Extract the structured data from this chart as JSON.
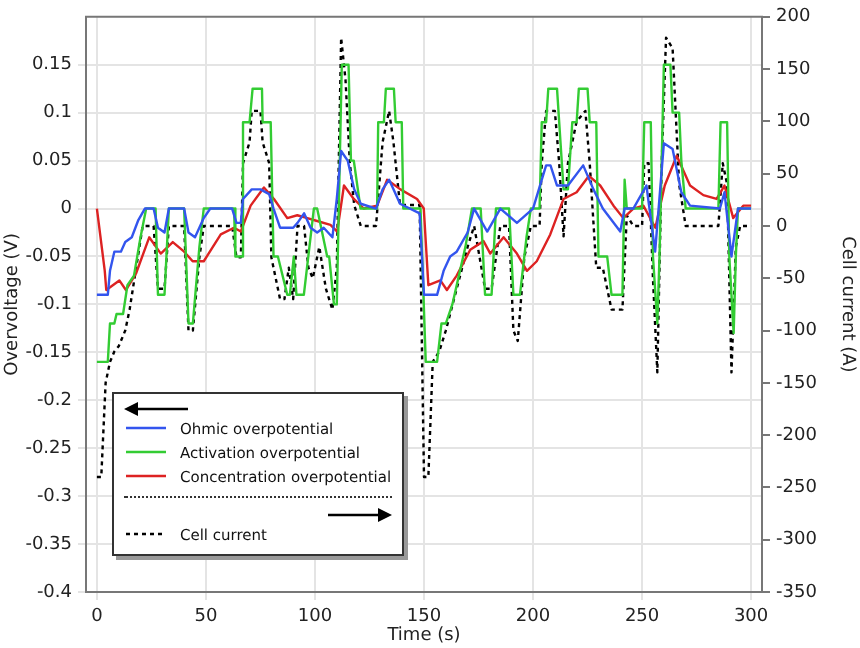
{
  "chart_data": {
    "type": "line",
    "xlabel": "Time (s)",
    "ylabel": "Overvoltage (V)",
    "y2label": "Cell current (A)",
    "xlim": [
      -5,
      305
    ],
    "xticks": [
      0,
      50,
      100,
      150,
      200,
      250,
      300
    ],
    "ylim": [
      -0.4,
      0.2
    ],
    "yticks": [
      -0.4,
      -0.35,
      -0.3,
      -0.25,
      -0.2,
      -0.15,
      -0.1,
      -0.05,
      0,
      0.05,
      0.1,
      0.15
    ],
    "y2lim": [
      -350,
      200
    ],
    "y2ticks": [
      -350,
      -300,
      -250,
      -200,
      -150,
      -100,
      -50,
      0,
      50,
      100,
      150,
      200
    ],
    "grid": true,
    "legend": "bottom left",
    "series": [
      {
        "name": "Ohmic overpotential",
        "color": "#3355ee",
        "x": [
          0,
          5,
          6,
          8,
          11,
          13,
          16,
          19,
          22,
          26,
          28,
          31,
          33,
          40,
          42,
          45,
          49,
          52,
          62,
          64,
          66,
          67,
          71,
          75,
          79,
          81,
          84,
          87,
          90,
          92,
          95,
          98,
          101,
          104,
          108,
          110,
          112,
          115,
          118,
          121,
          128,
          131,
          134,
          136,
          139,
          148,
          150,
          153,
          156,
          159,
          162,
          165,
          170,
          173,
          179,
          185,
          192.6,
          200,
          206,
          208,
          211,
          216,
          223,
          227.7,
          232,
          240,
          242,
          246,
          252,
          256,
          260,
          264,
          268,
          272,
          285.7,
          287.8,
          291,
          294,
          300
        ],
        "values": [
          -0.09,
          -0.09,
          -0.065,
          -0.045,
          -0.045,
          -0.035,
          -0.03,
          -0.012,
          0,
          0,
          -0.02,
          -0.025,
          0,
          0,
          -0.025,
          -0.03,
          -0.01,
          0,
          0,
          -0.015,
          -0.015,
          0.01,
          0.02,
          0.02,
          0.015,
          0,
          -0.02,
          -0.02,
          -0.02,
          -0.015,
          -0.005,
          -0.02,
          -0.025,
          -0.02,
          -0.03,
          0.01,
          0.06,
          0.05,
          0.02,
          0.005,
          0,
          0.02,
          0.03,
          0.02,
          0.005,
          -0.005,
          -0.09,
          -0.09,
          -0.09,
          -0.065,
          -0.05,
          -0.045,
          -0.025,
          0,
          -0.024,
          0,
          -0.015,
          0,
          0.045,
          0.045,
          0.024,
          0.024,
          0.045,
          0.02,
          0,
          -0.024,
          0,
          0,
          0.024,
          -0.045,
          0.068,
          0.062,
          0.017,
          0.003,
          0,
          0.017,
          -0.05,
          0,
          0
        ]
      },
      {
        "name": "Activation overpotential",
        "color": "#33cc33",
        "x": [
          0,
          5,
          6,
          8,
          9,
          12,
          14,
          17,
          20,
          22.6,
          26.9,
          28,
          31,
          33,
          40,
          42,
          44,
          47,
          49,
          62.9,
          63.5,
          66.6,
          67,
          70,
          71.4,
          75.7,
          76,
          79.7,
          81,
          83,
          87.3,
          88.5,
          90.3,
          91.5,
          94.9,
          99.5,
          101,
          105.6,
          106.5,
          108.7,
          110,
          112.3,
          115.4,
          116.5,
          117.8,
          120.9,
          128.5,
          129,
          131.6,
          132.5,
          136.2,
          137,
          139.8,
          140.5,
          148.4,
          150.8,
          153,
          156,
          158,
          160,
          163,
          166,
          169,
          172,
          176,
          178,
          181,
          183,
          189,
          191,
          194,
          197,
          199,
          203,
          204,
          206,
          207,
          211,
          212,
          214,
          216,
          218,
          220,
          221,
          225,
          226,
          229,
          230,
          234,
          236,
          241,
          242,
          243,
          250,
          251,
          254,
          255,
          257,
          258,
          260,
          263,
          264,
          267,
          268,
          270,
          285,
          286,
          289,
          290,
          292,
          293,
          294,
          300
        ],
        "values": [
          -0.16,
          -0.16,
          -0.12,
          -0.12,
          -0.11,
          -0.11,
          -0.08,
          -0.07,
          -0.03,
          0,
          0,
          -0.09,
          -0.09,
          0,
          0,
          -0.12,
          -0.12,
          -0.04,
          0,
          0,
          -0.05,
          -0.05,
          0.09,
          0.09,
          0.125,
          0.125,
          0.09,
          0.09,
          -0.05,
          -0.05,
          -0.09,
          -0.09,
          -0.05,
          -0.09,
          -0.09,
          0,
          0,
          -0.05,
          -0.05,
          -0.1,
          -0.1,
          0.15,
          0.15,
          0.05,
          0.05,
          0,
          0,
          0.09,
          0.09,
          0.125,
          0.125,
          0.09,
          0.09,
          0,
          0,
          -0.16,
          -0.16,
          -0.16,
          -0.12,
          -0.12,
          -0.1,
          -0.07,
          -0.04,
          0,
          0,
          -0.09,
          -0.09,
          0,
          0,
          -0.09,
          -0.09,
          -0.03,
          0,
          0,
          0.09,
          0.09,
          0.125,
          0.125,
          0.09,
          0.02,
          0.02,
          0.09,
          0.09,
          0.125,
          0.125,
          0.09,
          0.09,
          -0.05,
          -0.05,
          -0.09,
          -0.09,
          0.03,
          0,
          0,
          0.09,
          0.09,
          -0.05,
          -0.12,
          -0.05,
          0.15,
          0.15,
          0.1,
          0.1,
          0.05,
          0,
          0,
          0.09,
          0.09,
          -0.05,
          -0.13,
          -0.05,
          0,
          0
        ]
      },
      {
        "name": "Concentration overpotential",
        "color": "#dd2222",
        "x": [
          0,
          3.6,
          4.3,
          7.3,
          10.3,
          13.3,
          17.9,
          24,
          29.3,
          34.8,
          40,
          43.9,
          49,
          56.8,
          62.9,
          66,
          70.5,
          76.6,
          81.2,
          87.3,
          91.9,
          96.5,
          101,
          107.1,
          110.2,
          113.3,
          117.8,
          122.4,
          128.5,
          133.1,
          139.2,
          146.8,
          149.9,
          152,
          157.5,
          160.5,
          165,
          171.2,
          177.3,
          180.4,
          186.5,
          192.6,
          197.2,
          201.7,
          207.9,
          214,
          220,
          225.6,
          230.8,
          236.9,
          241.4,
          246,
          250.6,
          256.1,
          260.4,
          265.9,
          272,
          278.1,
          284.2,
          287.8,
          291.8,
          296.4,
          300
        ],
        "values": [
          0,
          -0.065,
          -0.085,
          -0.08,
          -0.075,
          -0.085,
          -0.068,
          -0.03,
          -0.047,
          -0.035,
          -0.045,
          -0.055,
          -0.055,
          -0.027,
          -0.02,
          -0.024,
          0.003,
          0.022,
          0.01,
          -0.01,
          -0.007,
          -0.01,
          -0.013,
          -0.017,
          -0.024,
          0.024,
          0.01,
          0,
          0.003,
          0.03,
          0.02,
          0.01,
          0,
          -0.08,
          -0.075,
          -0.085,
          -0.07,
          -0.043,
          -0.034,
          -0.047,
          -0.03,
          -0.047,
          -0.065,
          -0.055,
          -0.027,
          0.01,
          0.017,
          0.034,
          0.024,
          0.003,
          -0.01,
          0,
          0.003,
          -0.02,
          0.024,
          0.055,
          0.024,
          0.014,
          0.01,
          0.024,
          -0.01,
          0.003,
          0.003
        ]
      },
      {
        "name": "Cell current",
        "color": "#000000",
        "axis": "y2",
        "line_style": "dotted",
        "x": [
          0,
          2,
          4,
          6,
          8,
          10,
          13,
          15,
          18,
          21,
          26,
          28,
          31,
          33,
          40,
          42,
          44,
          47,
          49,
          62,
          64,
          66,
          67,
          70,
          71,
          75,
          76,
          79,
          80,
          82,
          84,
          86,
          88,
          90,
          92,
          95,
          97,
          99,
          102,
          105,
          108,
          110,
          112,
          114,
          116,
          118,
          121,
          128,
          131,
          134,
          136,
          139,
          148,
          150,
          152,
          154,
          157,
          160,
          165,
          170,
          173,
          178,
          181,
          185,
          189,
          191,
          193,
          196,
          199,
          203,
          204,
          206,
          210,
          212,
          214,
          216,
          220,
          224,
          226,
          229,
          232,
          236,
          241,
          243,
          246,
          250,
          251,
          253,
          255,
          257,
          259,
          261,
          264,
          267,
          270,
          285,
          287,
          289,
          291,
          293,
          295,
          300
        ],
        "values": [
          -240,
          -240,
          -150,
          -130,
          -120,
          -115,
          -100,
          -80,
          -40,
          0,
          0,
          -60,
          -60,
          0,
          0,
          -100,
          -100,
          -30,
          0,
          0,
          -30,
          -30,
          60,
          80,
          110,
          110,
          80,
          60,
          -30,
          -50,
          -70,
          -70,
          -40,
          -70,
          0,
          0,
          -40,
          -50,
          -20,
          -60,
          -80,
          -40,
          180,
          140,
          60,
          20,
          0,
          0,
          80,
          110,
          80,
          20,
          20,
          -240,
          -240,
          -130,
          -120,
          -100,
          -60,
          -20,
          0,
          -60,
          -60,
          0,
          0,
          -100,
          -110,
          -30,
          0,
          0,
          60,
          110,
          110,
          60,
          -10,
          60,
          100,
          110,
          60,
          -40,
          -40,
          -80,
          -80,
          10,
          0,
          0,
          60,
          60,
          -50,
          -140,
          60,
          180,
          170,
          40,
          0,
          0,
          60,
          40,
          -140,
          -20,
          0,
          0
        ]
      }
    ]
  }
}
